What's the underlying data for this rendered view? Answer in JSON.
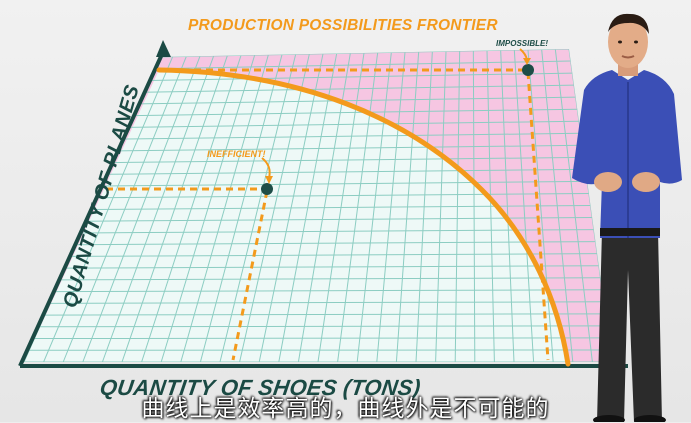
{
  "chart": {
    "title": "PRODUCTION POSSIBILITIES FRONTIER",
    "y_axis_label": "QUANTITY OF PLANES",
    "x_axis_label": "QUANTITY OF SHOES (TONS)",
    "annotations": {
      "impossible": "IMPOSSIBLE!",
      "inefficient": "INEFFICIENT!"
    },
    "colors": {
      "frontier": "#f39a1c",
      "axes": "#1b4a44",
      "efficient_region": "#eaf7f5",
      "impossible_region": "#f6c6e2",
      "grid": "#7fc3b8"
    }
  },
  "subtitle": "曲线上是效率高的，曲线外是不可能的",
  "presenter": {
    "shirt_color": "#3b4fb6"
  }
}
